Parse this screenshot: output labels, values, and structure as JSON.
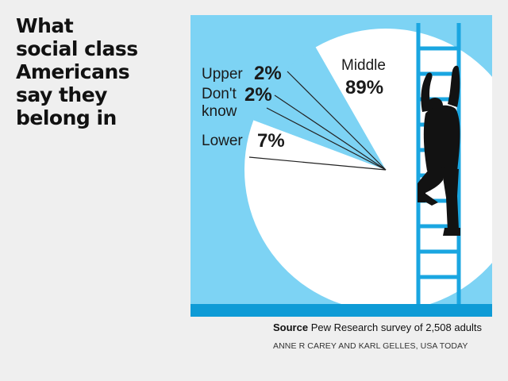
{
  "title_lines": [
    "What",
    "social class",
    "Americans",
    "say they",
    "belong in"
  ],
  "chart_data": {
    "type": "pie",
    "title": "What social class Americans say they belong in",
    "slices": [
      {
        "label": "Middle",
        "value": 89,
        "display": "89%"
      },
      {
        "label": "Upper",
        "value": 2,
        "display": "2%"
      },
      {
        "label": "Don't know",
        "value": 2,
        "display": "2%"
      },
      {
        "label": "Lower",
        "value": 7,
        "display": "7%"
      }
    ],
    "colors": {
      "pie": "#ffffff",
      "background": "#7dd3f4",
      "ground": "#0e9bd6",
      "ladder": "#1aa6e1",
      "figure": "#121212"
    }
  },
  "source": {
    "label": "Source",
    "text": "Pew Research survey of 2,508 adults"
  },
  "credit": "ANNE R CAREY AND KARL GELLES, USA TODAY"
}
